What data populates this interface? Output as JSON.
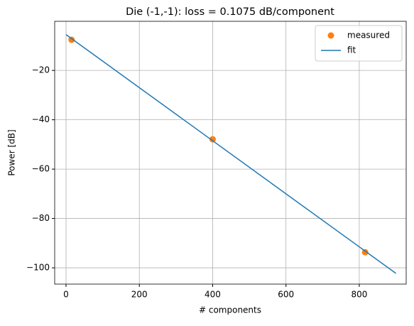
{
  "chart_data": {
    "type": "scatter",
    "title": "Die (-1,-1): loss = 0.1075 dB/component",
    "xlabel": "# components",
    "ylabel": "Power [dB]",
    "xlim": [
      -31,
      928
    ],
    "ylim": [
      -106.6,
      -0.1
    ],
    "xticks": [
      0,
      200,
      400,
      600,
      800
    ],
    "yticks": [
      {
        "value": -100,
        "label": "−100"
      },
      {
        "value": -80,
        "label": "−80"
      },
      {
        "value": -60,
        "label": "−60"
      },
      {
        "value": -40,
        "label": "−40"
      },
      {
        "value": -20,
        "label": "−20"
      }
    ],
    "grid": true,
    "legend": "upper right",
    "series": [
      {
        "name": "measured",
        "kind": "scatter",
        "color": "#ff7f0e",
        "x": [
          15,
          400,
          816
        ],
        "values": [
          -7.6,
          -47.9,
          -93.7
        ]
      },
      {
        "name": "fit",
        "kind": "line",
        "color": "#1f77b4",
        "x": [
          0,
          900
        ],
        "values": [
          -5.5,
          -102.25
        ]
      }
    ]
  }
}
